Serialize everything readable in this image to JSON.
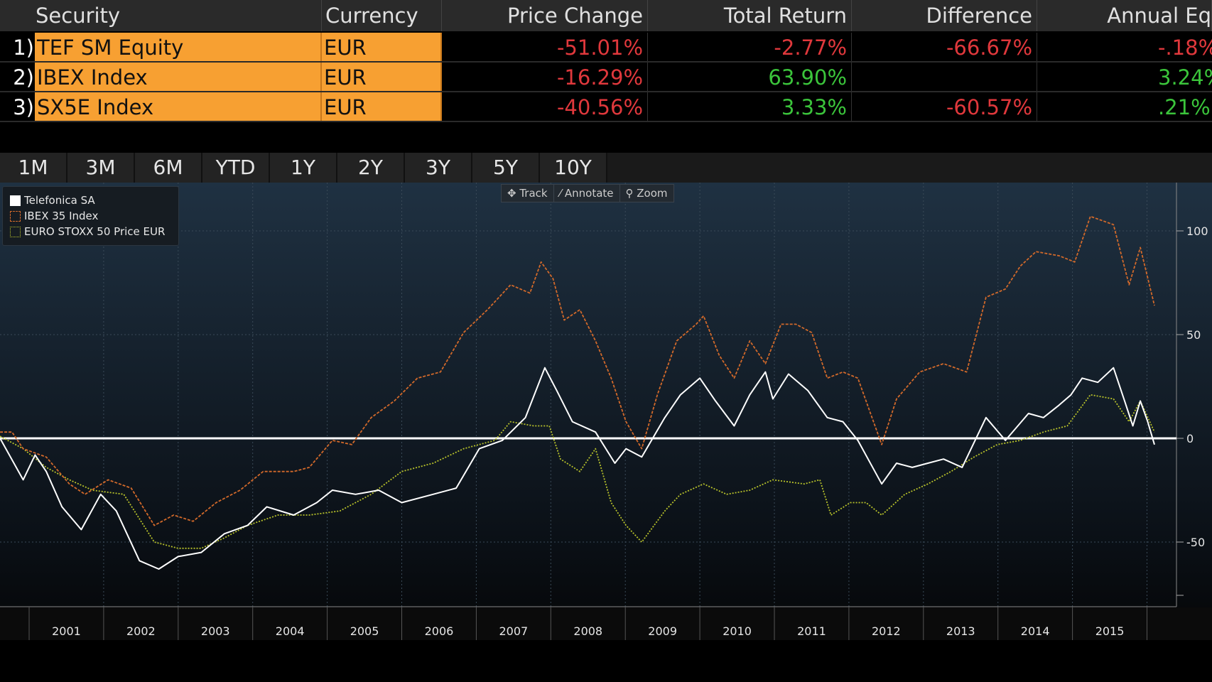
{
  "table": {
    "headers": [
      "Security",
      "Currency",
      "Price Change",
      "Total Return",
      "Difference",
      "Annual Eq"
    ],
    "rows": [
      {
        "idx": "1)",
        "security": "TEF SM Equity",
        "currency": "EUR",
        "price_change": "-51.01%",
        "total_return": "-2.77%",
        "difference": "-66.67%",
        "annual_eq": "-.18%"
      },
      {
        "idx": "2)",
        "security": "IBEX Index",
        "currency": "EUR",
        "price_change": "-16.29%",
        "total_return": "63.90%",
        "difference": "",
        "annual_eq": "3.24%"
      },
      {
        "idx": "3)",
        "security": "SX5E Index",
        "currency": "EUR",
        "price_change": "-40.56%",
        "total_return": "3.33%",
        "difference": "-60.57%",
        "annual_eq": ".21%"
      }
    ]
  },
  "tabs": [
    "1M",
    "3M",
    "6M",
    "YTD",
    "1Y",
    "2Y",
    "3Y",
    "5Y",
    "10Y"
  ],
  "tools": {
    "track": "✥ Track",
    "annotate": "⁄ Annotate",
    "zoom": "⚲ Zoom"
  },
  "colors": {
    "telefonica": "#ffffff",
    "ibex": "#d2692a",
    "sx5e": "#b8c22a",
    "positive": "#3bc43b",
    "negative": "#e0383c",
    "accent": "#f7a032"
  },
  "chart_data": {
    "type": "line",
    "xlabel": "",
    "ylabel": "",
    "xlim": [
      2000.61,
      2016.5
    ],
    "ylim": [
      -85,
      118
    ],
    "yticks": [
      100,
      50,
      0,
      -50
    ],
    "xtick_labels": [
      "2001",
      "2002",
      "2003",
      "2004",
      "2005",
      "2006",
      "2007",
      "2008",
      "2009",
      "2010",
      "2011",
      "2012",
      "2013",
      "2014",
      "2015"
    ],
    "legend_position": "top-left",
    "grid": true,
    "series": [
      {
        "name": "Telefonica SA",
        "key": "telefonica",
        "style": "solid",
        "points": [
          [
            2000.61,
            0
          ],
          [
            2000.92,
            -20
          ],
          [
            2001.08,
            -8
          ],
          [
            2001.23,
            -16
          ],
          [
            2001.44,
            -33
          ],
          [
            2001.7,
            -44
          ],
          [
            2001.96,
            -27
          ],
          [
            2002.17,
            -35
          ],
          [
            2002.48,
            -59
          ],
          [
            2002.74,
            -63
          ],
          [
            2003.0,
            -57
          ],
          [
            2003.31,
            -55
          ],
          [
            2003.62,
            -46
          ],
          [
            2003.93,
            -42
          ],
          [
            2004.19,
            -33
          ],
          [
            2004.55,
            -37
          ],
          [
            2004.86,
            -31
          ],
          [
            2005.07,
            -25
          ],
          [
            2005.38,
            -27
          ],
          [
            2005.69,
            -25
          ],
          [
            2006.0,
            -31
          ],
          [
            2006.42,
            -27
          ],
          [
            2006.73,
            -24
          ],
          [
            2007.04,
            -5
          ],
          [
            2007.35,
            -1
          ],
          [
            2007.66,
            10
          ],
          [
            2007.92,
            34
          ],
          [
            2008.08,
            23
          ],
          [
            2008.29,
            8
          ],
          [
            2008.6,
            3
          ],
          [
            2008.86,
            -12
          ],
          [
            2009.01,
            -5
          ],
          [
            2009.22,
            -9
          ],
          [
            2009.53,
            10
          ],
          [
            2009.74,
            21
          ],
          [
            2010.0,
            29
          ],
          [
            2010.21,
            18
          ],
          [
            2010.46,
            6
          ],
          [
            2010.67,
            21
          ],
          [
            2010.88,
            32
          ],
          [
            2010.98,
            19
          ],
          [
            2011.19,
            31
          ],
          [
            2011.45,
            23
          ],
          [
            2011.71,
            10
          ],
          [
            2011.92,
            8
          ],
          [
            2012.12,
            -1
          ],
          [
            2012.44,
            -22
          ],
          [
            2012.64,
            -12
          ],
          [
            2012.85,
            -14
          ],
          [
            2013.06,
            -12
          ],
          [
            2013.27,
            -10
          ],
          [
            2013.52,
            -14
          ],
          [
            2013.84,
            10
          ],
          [
            2014.1,
            -1
          ],
          [
            2014.41,
            12
          ],
          [
            2014.61,
            10
          ],
          [
            2014.82,
            16
          ],
          [
            2014.98,
            21
          ],
          [
            2015.13,
            29
          ],
          [
            2015.34,
            27
          ],
          [
            2015.55,
            34
          ],
          [
            2015.7,
            18
          ],
          [
            2015.81,
            6
          ],
          [
            2015.91,
            18
          ],
          [
            2016.01,
            8
          ],
          [
            2016.1,
            -3
          ]
        ]
      },
      {
        "name": "IBEX 35 Index",
        "key": "ibex",
        "style": "dashed",
        "points": [
          [
            2000.61,
            3
          ],
          [
            2000.77,
            3
          ],
          [
            2000.92,
            -5
          ],
          [
            2001.23,
            -9
          ],
          [
            2001.54,
            -22
          ],
          [
            2001.75,
            -27
          ],
          [
            2002.06,
            -20
          ],
          [
            2002.37,
            -24
          ],
          [
            2002.68,
            -42
          ],
          [
            2002.94,
            -37
          ],
          [
            2003.2,
            -40
          ],
          [
            2003.51,
            -31
          ],
          [
            2003.83,
            -25
          ],
          [
            2004.14,
            -16
          ],
          [
            2004.55,
            -16
          ],
          [
            2004.76,
            -14
          ],
          [
            2005.07,
            -1
          ],
          [
            2005.33,
            -3
          ],
          [
            2005.59,
            10
          ],
          [
            2005.9,
            18
          ],
          [
            2006.21,
            29
          ],
          [
            2006.52,
            32
          ],
          [
            2006.83,
            51
          ],
          [
            2007.15,
            62
          ],
          [
            2007.46,
            74
          ],
          [
            2007.72,
            70
          ],
          [
            2007.87,
            85
          ],
          [
            2008.03,
            77
          ],
          [
            2008.18,
            57
          ],
          [
            2008.39,
            62
          ],
          [
            2008.6,
            47
          ],
          [
            2008.81,
            29
          ],
          [
            2009.01,
            8
          ],
          [
            2009.22,
            -5
          ],
          [
            2009.43,
            21
          ],
          [
            2009.69,
            47
          ],
          [
            2009.95,
            55
          ],
          [
            2010.05,
            59
          ],
          [
            2010.26,
            40
          ],
          [
            2010.46,
            29
          ],
          [
            2010.67,
            47
          ],
          [
            2010.88,
            36
          ],
          [
            2011.09,
            55
          ],
          [
            2011.29,
            55
          ],
          [
            2011.5,
            51
          ],
          [
            2011.71,
            29
          ],
          [
            2011.92,
            32
          ],
          [
            2012.12,
            29
          ],
          [
            2012.44,
            -3
          ],
          [
            2012.64,
            19
          ],
          [
            2012.95,
            32
          ],
          [
            2013.27,
            36
          ],
          [
            2013.58,
            32
          ],
          [
            2013.84,
            68
          ],
          [
            2014.1,
            72
          ],
          [
            2014.3,
            83
          ],
          [
            2014.51,
            90
          ],
          [
            2014.82,
            88
          ],
          [
            2015.03,
            85
          ],
          [
            2015.24,
            107
          ],
          [
            2015.55,
            103
          ],
          [
            2015.76,
            74
          ],
          [
            2015.91,
            92
          ],
          [
            2016.1,
            64
          ]
        ]
      },
      {
        "name": "EURO STOXX 50 Price EUR",
        "key": "sx5e",
        "style": "dotted",
        "points": [
          [
            2000.61,
            1
          ],
          [
            2000.92,
            -5
          ],
          [
            2001.23,
            -14
          ],
          [
            2001.54,
            -20
          ],
          [
            2001.85,
            -25
          ],
          [
            2002.27,
            -27
          ],
          [
            2002.68,
            -50
          ],
          [
            2003.0,
            -53
          ],
          [
            2003.31,
            -53
          ],
          [
            2003.62,
            -48
          ],
          [
            2003.93,
            -42
          ],
          [
            2004.34,
            -37
          ],
          [
            2004.76,
            -37
          ],
          [
            2005.17,
            -35
          ],
          [
            2005.59,
            -27
          ],
          [
            2006.0,
            -16
          ],
          [
            2006.42,
            -12
          ],
          [
            2006.83,
            -5
          ],
          [
            2007.25,
            -1
          ],
          [
            2007.46,
            8
          ],
          [
            2007.77,
            6
          ],
          [
            2007.98,
            6
          ],
          [
            2008.13,
            -10
          ],
          [
            2008.39,
            -16
          ],
          [
            2008.6,
            -5
          ],
          [
            2008.81,
            -31
          ],
          [
            2009.01,
            -42
          ],
          [
            2009.22,
            -50
          ],
          [
            2009.53,
            -35
          ],
          [
            2009.74,
            -27
          ],
          [
            2010.05,
            -22
          ],
          [
            2010.36,
            -27
          ],
          [
            2010.67,
            -25
          ],
          [
            2010.98,
            -20
          ],
          [
            2011.4,
            -22
          ],
          [
            2011.61,
            -20
          ],
          [
            2011.76,
            -37
          ],
          [
            2012.02,
            -31
          ],
          [
            2012.23,
            -31
          ],
          [
            2012.44,
            -37
          ],
          [
            2012.75,
            -27
          ],
          [
            2013.06,
            -22
          ],
          [
            2013.37,
            -16
          ],
          [
            2013.68,
            -9
          ],
          [
            2013.99,
            -3
          ],
          [
            2014.3,
            -1
          ],
          [
            2014.61,
            3
          ],
          [
            2014.93,
            6
          ],
          [
            2015.24,
            21
          ],
          [
            2015.55,
            19
          ],
          [
            2015.76,
            8
          ],
          [
            2015.91,
            18
          ],
          [
            2016.1,
            3
          ]
        ]
      }
    ]
  }
}
